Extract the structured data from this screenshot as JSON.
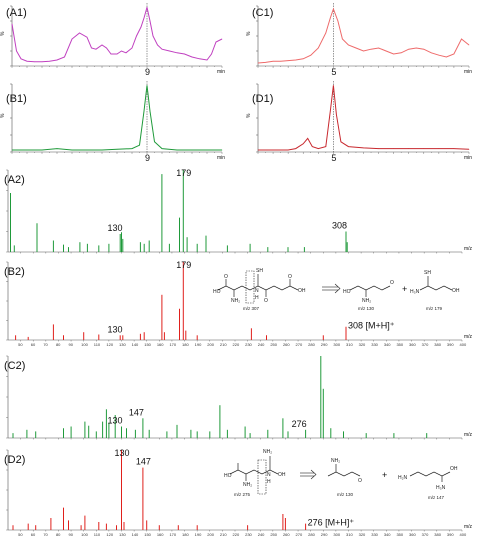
{
  "colors": {
    "magenta": "#c040c0",
    "green": "#1f9a3a",
    "red": "#e0201c",
    "pink": "#ee6a6a",
    "darkred": "#c8282e",
    "axis": "#555555"
  },
  "chart_data": [
    {
      "id": "A1",
      "type": "line",
      "panel_label": "(A1)",
      "ylabel": "%",
      "xlabel": "min",
      "x_ticks": [
        9
      ],
      "ylim": [
        0,
        100
      ],
      "series_color": "magenta",
      "marker_x": 9,
      "x": [
        0,
        0.3,
        0.6,
        1,
        1.5,
        2,
        2.5,
        3,
        3.5,
        4,
        4.5,
        5,
        5.3,
        5.6,
        6,
        6.3,
        6.6,
        7,
        7.3,
        7.6,
        8,
        8.3,
        8.6,
        8.8,
        9,
        9.2,
        9.4,
        9.7,
        10,
        10.5,
        11,
        11.5,
        12,
        12.5,
        13,
        13.3,
        13.6,
        14
      ],
      "y": [
        70,
        25,
        12,
        8,
        7,
        7,
        8,
        10,
        15,
        45,
        55,
        48,
        30,
        28,
        35,
        30,
        20,
        20,
        25,
        22,
        30,
        50,
        65,
        80,
        98,
        75,
        50,
        35,
        28,
        25,
        22,
        20,
        15,
        12,
        10,
        20,
        40,
        45
      ]
    },
    {
      "id": "B1",
      "type": "line",
      "panel_label": "(B1)",
      "ylabel": "%",
      "xlabel": "min",
      "x_ticks": [
        9
      ],
      "ylim": [
        0,
        100
      ],
      "series_color": "green",
      "marker_x": 9,
      "x": [
        0,
        1,
        2,
        3,
        4,
        5,
        6,
        7,
        8,
        8.5,
        8.8,
        9,
        9.2,
        9.5,
        10,
        11,
        12,
        13,
        14
      ],
      "y": [
        3,
        3,
        3,
        5,
        3,
        3,
        3,
        4,
        5,
        10,
        60,
        98,
        60,
        15,
        5,
        3,
        3,
        3,
        3
      ]
    },
    {
      "id": "C1",
      "type": "line",
      "panel_label": "(C1)",
      "ylabel": "%",
      "xlabel": "min",
      "x_ticks": [
        5
      ],
      "ylim": [
        0,
        100
      ],
      "series_color": "pink",
      "marker_x": 5,
      "x": [
        0,
        0.5,
        1,
        1.5,
        2,
        2.5,
        3,
        3.5,
        4,
        4.5,
        4.8,
        5,
        5.3,
        5.6,
        6,
        6.5,
        7,
        7.5,
        8,
        8.5,
        9,
        9.5,
        10,
        10.5,
        11,
        11.5,
        12,
        12.5,
        13,
        13.5,
        14
      ],
      "y": [
        5,
        6,
        8,
        8,
        9,
        10,
        12,
        18,
        30,
        55,
        80,
        95,
        75,
        45,
        35,
        30,
        25,
        28,
        30,
        25,
        20,
        22,
        28,
        30,
        28,
        22,
        18,
        15,
        20,
        45,
        35
      ]
    },
    {
      "id": "D1",
      "type": "line",
      "panel_label": "(D1)",
      "ylabel": "%",
      "xlabel": "min",
      "x_ticks": [
        5
      ],
      "ylim": [
        0,
        100
      ],
      "series_color": "darkred",
      "marker_x": 5,
      "x": [
        0,
        1,
        2,
        2.5,
        3,
        3.3,
        3.6,
        4,
        4.5,
        4.8,
        5,
        5.2,
        5.5,
        6,
        7,
        8,
        9,
        10,
        11,
        12,
        13,
        14
      ],
      "y": [
        3,
        3,
        3,
        5,
        12,
        20,
        8,
        5,
        8,
        60,
        98,
        55,
        15,
        8,
        6,
        5,
        5,
        5,
        5,
        5,
        5,
        4
      ]
    },
    {
      "id": "A2",
      "type": "bar",
      "panel_label": "(A2)",
      "xlabel": "m/z",
      "xlim": [
        40,
        400
      ],
      "ylim": [
        0,
        100
      ],
      "series_color": "green",
      "show_ticks": false,
      "annotations": [
        {
          "x": 130,
          "text": "130"
        },
        {
          "x": 179,
          "text": "179"
        },
        {
          "x": 308,
          "text": "308"
        }
      ],
      "peaks": [
        [
          42,
          72
        ],
        [
          45,
          8
        ],
        [
          63,
          35
        ],
        [
          76,
          14
        ],
        [
          84,
          9
        ],
        [
          88,
          6
        ],
        [
          97,
          12
        ],
        [
          103,
          10
        ],
        [
          112,
          8
        ],
        [
          120,
          10
        ],
        [
          129,
          22
        ],
        [
          130,
          24
        ],
        [
          131,
          16
        ],
        [
          145,
          12
        ],
        [
          148,
          10
        ],
        [
          152,
          14
        ],
        [
          162,
          95
        ],
        [
          168,
          10
        ],
        [
          176,
          42
        ],
        [
          179,
          100
        ],
        [
          182,
          18
        ],
        [
          190,
          10
        ],
        [
          197,
          20
        ],
        [
          214,
          8
        ],
        [
          232,
          10
        ],
        [
          246,
          6
        ],
        [
          262,
          6
        ],
        [
          275,
          6
        ],
        [
          308,
          25
        ],
        [
          309,
          12
        ]
      ]
    },
    {
      "id": "B2",
      "type": "bar",
      "panel_label": "(B2)",
      "xlabel": "m/z",
      "xlim": [
        40,
        400
      ],
      "ylim": [
        0,
        100
      ],
      "series_color": "red",
      "show_ticks": true,
      "x_ticks": [
        50,
        60,
        70,
        80,
        90,
        100,
        110,
        120,
        130,
        140,
        150,
        160,
        170,
        180,
        190,
        200,
        210,
        220,
        230,
        240,
        250,
        260,
        270,
        280,
        290,
        300,
        310,
        320,
        330,
        340,
        350,
        360,
        370,
        380,
        390,
        400
      ],
      "annotations": [
        {
          "x": 130,
          "text": "130"
        },
        {
          "x": 179,
          "text": "179"
        },
        {
          "x": 308,
          "text": "308 [M+H]⁺"
        }
      ],
      "peaks": [
        [
          46,
          6
        ],
        [
          56,
          4
        ],
        [
          76,
          20
        ],
        [
          84,
          6
        ],
        [
          100,
          10
        ],
        [
          112,
          7
        ],
        [
          129,
          6
        ],
        [
          131,
          6
        ],
        [
          145,
          8
        ],
        [
          148,
          10
        ],
        [
          162,
          58
        ],
        [
          164,
          10
        ],
        [
          176,
          40
        ],
        [
          179,
          100
        ],
        [
          181,
          12
        ],
        [
          190,
          6
        ],
        [
          233,
          15
        ],
        [
          245,
          6
        ],
        [
          290,
          6
        ],
        [
          308,
          17
        ]
      ]
    },
    {
      "id": "C2",
      "type": "bar",
      "panel_label": "(C2)",
      "xlabel": "m/z",
      "xlim": [
        40,
        400
      ],
      "ylim": [
        0,
        100
      ],
      "series_color": "green",
      "show_ticks": false,
      "annotations": [
        {
          "x": 130,
          "text": "130"
        },
        {
          "x": 147,
          "text": "147"
        },
        {
          "x": 276,
          "text": "276"
        }
      ],
      "peaks": [
        [
          44,
          6
        ],
        [
          55,
          10
        ],
        [
          62,
          8
        ],
        [
          84,
          12
        ],
        [
          90,
          14
        ],
        [
          101,
          20
        ],
        [
          104,
          15
        ],
        [
          110,
          8
        ],
        [
          115,
          20
        ],
        [
          118,
          35
        ],
        [
          120,
          18
        ],
        [
          125,
          28
        ],
        [
          130,
          14
        ],
        [
          134,
          12
        ],
        [
          141,
          10
        ],
        [
          147,
          24
        ],
        [
          152,
          10
        ],
        [
          166,
          8
        ],
        [
          174,
          16
        ],
        [
          185,
          10
        ],
        [
          190,
          8
        ],
        [
          200,
          8
        ],
        [
          208,
          40
        ],
        [
          214,
          10
        ],
        [
          228,
          14
        ],
        [
          232,
          6
        ],
        [
          246,
          10
        ],
        [
          258,
          24
        ],
        [
          262,
          8
        ],
        [
          276,
          10
        ],
        [
          288,
          100
        ],
        [
          290,
          60
        ],
        [
          296,
          12
        ],
        [
          306,
          8
        ],
        [
          324,
          6
        ],
        [
          346,
          6
        ],
        [
          372,
          6
        ]
      ]
    },
    {
      "id": "D2",
      "type": "bar",
      "panel_label": "(D2)",
      "xlabel": "m/z",
      "xlim": [
        40,
        400
      ],
      "ylim": [
        0,
        100
      ],
      "series_color": "red",
      "show_ticks": true,
      "x_ticks": [
        50,
        60,
        70,
        80,
        90,
        100,
        110,
        120,
        130,
        140,
        150,
        160,
        170,
        180,
        190,
        200,
        210,
        220,
        230,
        240,
        250,
        260,
        270,
        280,
        290,
        300,
        310,
        320,
        330,
        340,
        350,
        360,
        370,
        380,
        390,
        400
      ],
      "annotations": [
        {
          "x": 130,
          "text": "130"
        },
        {
          "x": 147,
          "text": "147"
        },
        {
          "x": 276,
          "text": "276 [M+H]⁺"
        }
      ],
      "peaks": [
        [
          44,
          6
        ],
        [
          56,
          8
        ],
        [
          62,
          6
        ],
        [
          74,
          15
        ],
        [
          84,
          28
        ],
        [
          88,
          12
        ],
        [
          98,
          6
        ],
        [
          101,
          18
        ],
        [
          112,
          10
        ],
        [
          118,
          8
        ],
        [
          126,
          6
        ],
        [
          130,
          100
        ],
        [
          132,
          10
        ],
        [
          147,
          78
        ],
        [
          150,
          12
        ],
        [
          160,
          6
        ],
        [
          175,
          6
        ],
        [
          190,
          6
        ],
        [
          230,
          6
        ],
        [
          258,
          20
        ],
        [
          260,
          15
        ],
        [
          276,
          8
        ]
      ]
    }
  ],
  "schemes": {
    "b2": {
      "parent_label": "m/z 307",
      "frag1_label": "m/z 130",
      "frag2_label": "m/z 179",
      "plus": "+",
      "sh": "SH",
      "nh2": "NH₂",
      "nh3": "H₃N",
      "nh": "N",
      "h": "H",
      "oh": "OH",
      "o": "O",
      "ho": "HO"
    },
    "d2": {
      "parent_label": "m/z 275",
      "frag1_label": "m/z 130",
      "frag2_label": "m/z 147",
      "plus": "+",
      "nh2": "NH₂",
      "nh3": "H₃N",
      "nh": "N",
      "h": "H",
      "oh": "OH",
      "o": "O",
      "ho": "HO",
      "h2n": "H₂N"
    }
  }
}
